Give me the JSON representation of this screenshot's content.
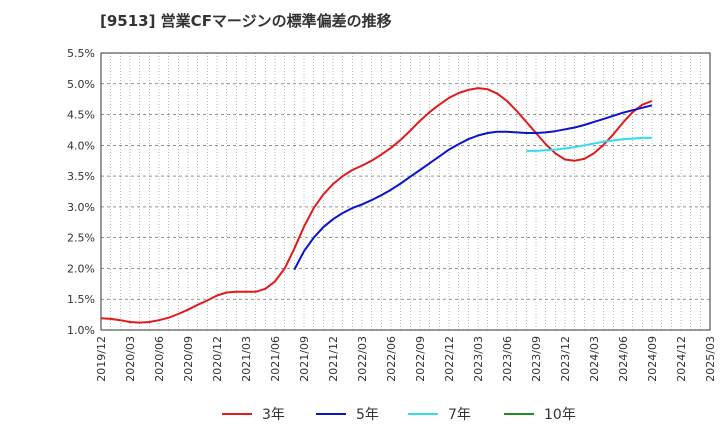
{
  "chart_data": {
    "type": "line",
    "title": "[9513]  営業CFマージンの標準偏差の推移",
    "xlabel": "",
    "ylabel": "",
    "ylim": [
      1.0,
      5.5
    ],
    "grid": true,
    "legend_position": "bottom",
    "y_ticks": [
      "1.0%",
      "1.5%",
      "2.0%",
      "2.5%",
      "3.0%",
      "3.5%",
      "4.0%",
      "4.5%",
      "5.0%",
      "5.5%"
    ],
    "x_ticks": [
      "2019/12",
      "2020/03",
      "2020/06",
      "2020/09",
      "2020/12",
      "2021/03",
      "2021/06",
      "2021/09",
      "2021/12",
      "2022/03",
      "2022/06",
      "2022/09",
      "2022/12",
      "2023/03",
      "2023/06",
      "2023/09",
      "2023/12",
      "2024/03",
      "2024/06",
      "2024/09",
      "2024/12",
      "2025/03"
    ],
    "series": [
      {
        "name": "3年",
        "color": "#e31a1c",
        "points": [
          [
            "2019/12",
            1.19
          ],
          [
            "2020/01",
            1.18
          ],
          [
            "2020/02",
            1.16
          ],
          [
            "2020/03",
            1.13
          ],
          [
            "2020/04",
            1.12
          ],
          [
            "2020/05",
            1.13
          ],
          [
            "2020/06",
            1.16
          ],
          [
            "2020/07",
            1.2
          ],
          [
            "2020/08",
            1.26
          ],
          [
            "2020/09",
            1.33
          ],
          [
            "2020/10",
            1.41
          ],
          [
            "2020/11",
            1.48
          ],
          [
            "2020/12",
            1.56
          ],
          [
            "2021/01",
            1.61
          ],
          [
            "2021/02",
            1.62
          ],
          [
            "2021/03",
            1.62
          ],
          [
            "2021/04",
            1.62
          ],
          [
            "2021/05",
            1.67
          ],
          [
            "2021/06",
            1.79
          ],
          [
            "2021/07",
            2.0
          ],
          [
            "2021/08",
            2.32
          ],
          [
            "2021/09",
            2.68
          ],
          [
            "2021/10",
            2.98
          ],
          [
            "2021/11",
            3.2
          ],
          [
            "2021/12",
            3.37
          ],
          [
            "2022/01",
            3.5
          ],
          [
            "2022/02",
            3.6
          ],
          [
            "2022/03",
            3.67
          ],
          [
            "2022/04",
            3.75
          ],
          [
            "2022/05",
            3.85
          ],
          [
            "2022/06",
            3.96
          ],
          [
            "2022/07",
            4.09
          ],
          [
            "2022/08",
            4.24
          ],
          [
            "2022/09",
            4.4
          ],
          [
            "2022/10",
            4.54
          ],
          [
            "2022/11",
            4.66
          ],
          [
            "2022/12",
            4.77
          ],
          [
            "2023/01",
            4.85
          ],
          [
            "2023/02",
            4.9
          ],
          [
            "2023/03",
            4.93
          ],
          [
            "2023/04",
            4.91
          ],
          [
            "2023/05",
            4.84
          ],
          [
            "2023/06",
            4.72
          ],
          [
            "2023/07",
            4.56
          ],
          [
            "2023/08",
            4.38
          ],
          [
            "2023/09",
            4.2
          ],
          [
            "2023/10",
            4.02
          ],
          [
            "2023/11",
            3.87
          ],
          [
            "2023/12",
            3.77
          ],
          [
            "2024/01",
            3.75
          ],
          [
            "2024/02",
            3.78
          ],
          [
            "2024/03",
            3.87
          ],
          [
            "2024/04",
            4.01
          ],
          [
            "2024/05",
            4.18
          ],
          [
            "2024/06",
            4.37
          ],
          [
            "2024/07",
            4.54
          ],
          [
            "2024/08",
            4.66
          ],
          [
            "2024/09",
            4.72
          ]
        ]
      },
      {
        "name": "5年",
        "color": "#0a14c8",
        "points": [
          [
            "2021/08",
            1.98
          ],
          [
            "2021/09",
            2.28
          ],
          [
            "2021/10",
            2.5
          ],
          [
            "2021/11",
            2.67
          ],
          [
            "2021/12",
            2.8
          ],
          [
            "2022/01",
            2.9
          ],
          [
            "2022/02",
            2.98
          ],
          [
            "2022/03",
            3.04
          ],
          [
            "2022/04",
            3.11
          ],
          [
            "2022/05",
            3.19
          ],
          [
            "2022/06",
            3.28
          ],
          [
            "2022/07",
            3.38
          ],
          [
            "2022/08",
            3.49
          ],
          [
            "2022/09",
            3.6
          ],
          [
            "2022/10",
            3.71
          ],
          [
            "2022/11",
            3.82
          ],
          [
            "2022/12",
            3.93
          ],
          [
            "2023/01",
            4.02
          ],
          [
            "2023/02",
            4.1
          ],
          [
            "2023/03",
            4.16
          ],
          [
            "2023/04",
            4.2
          ],
          [
            "2023/05",
            4.22
          ],
          [
            "2023/06",
            4.22
          ],
          [
            "2023/07",
            4.21
          ],
          [
            "2023/08",
            4.2
          ],
          [
            "2023/09",
            4.2
          ],
          [
            "2023/10",
            4.21
          ],
          [
            "2023/11",
            4.23
          ],
          [
            "2023/12",
            4.26
          ],
          [
            "2024/01",
            4.29
          ],
          [
            "2024/02",
            4.33
          ],
          [
            "2024/03",
            4.38
          ],
          [
            "2024/04",
            4.43
          ],
          [
            "2024/05",
            4.48
          ],
          [
            "2024/06",
            4.53
          ],
          [
            "2024/07",
            4.57
          ],
          [
            "2024/08",
            4.61
          ],
          [
            "2024/09",
            4.65
          ]
        ]
      },
      {
        "name": "7年",
        "color": "#33ddee",
        "points": [
          [
            "2023/08",
            3.91
          ],
          [
            "2023/09",
            3.91
          ],
          [
            "2023/10",
            3.92
          ],
          [
            "2023/11",
            3.93
          ],
          [
            "2023/12",
            3.95
          ],
          [
            "2024/01",
            3.97
          ],
          [
            "2024/02",
            4.0
          ],
          [
            "2024/03",
            4.03
          ],
          [
            "2024/04",
            4.06
          ],
          [
            "2024/05",
            4.08
          ],
          [
            "2024/06",
            4.1
          ],
          [
            "2024/07",
            4.11
          ],
          [
            "2024/08",
            4.12
          ],
          [
            "2024/09",
            4.12
          ]
        ]
      },
      {
        "name": "10年",
        "color": "#228b22",
        "points": []
      }
    ]
  }
}
